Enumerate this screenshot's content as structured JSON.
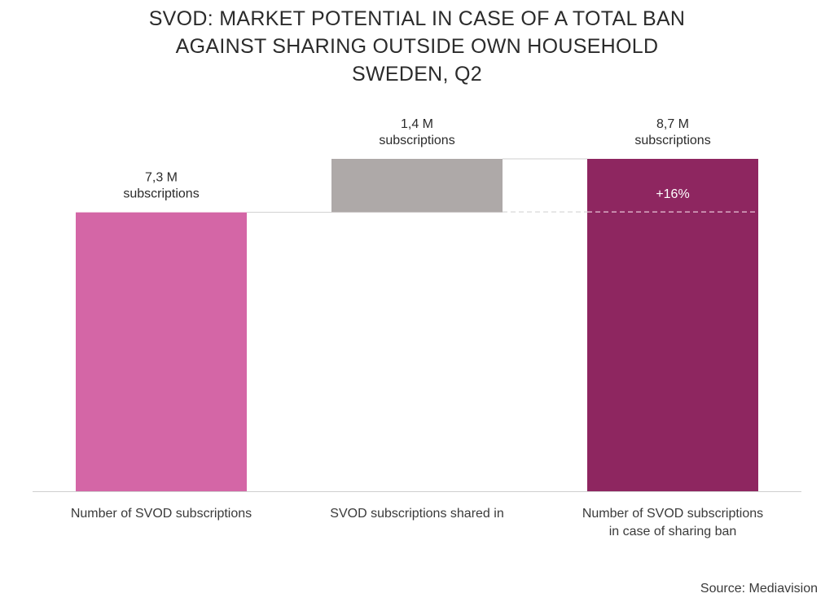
{
  "title_lines": [
    "SVOD: MARKET POTENTIAL IN CASE OF A TOTAL BAN",
    "AGAINST SHARING OUTSIDE OWN HOUSEHOLD",
    "SWEDEN, Q2"
  ],
  "source": "Source: Mediavision",
  "chart_data": {
    "type": "bar",
    "subtype": "waterfall",
    "title": "SVOD: MARKET POTENTIAL IN CASE OF A TOTAL BAN AGAINST SHARING OUTSIDE OWN HOUSEHOLD SWEDEN, Q2",
    "unit": "M subscriptions",
    "categories": [
      "Number of SVOD subscriptions",
      "SVOD subscriptions shared in",
      "Number of SVOD subscriptions in case of sharing ban"
    ],
    "category_label_lines": [
      [
        "Number of SVOD subscriptions"
      ],
      [
        "SVOD subscriptions shared in"
      ],
      [
        "Number of SVOD subscriptions",
        "in case of sharing ban"
      ]
    ],
    "values": [
      7.3,
      1.4,
      8.7
    ],
    "bar_kinds": [
      "total",
      "increment",
      "total"
    ],
    "data_labels": [
      [
        "7,3 M",
        "subscriptions"
      ],
      [
        "1,4 M",
        "subscriptions"
      ],
      [
        "8,7 M",
        "subscriptions"
      ]
    ],
    "annotation": "+16%",
    "colors": [
      "#d466a6",
      "#aea9a8",
      "#8e2660"
    ],
    "ylim": [
      0,
      8.7
    ],
    "grid": false,
    "legend": "none"
  }
}
